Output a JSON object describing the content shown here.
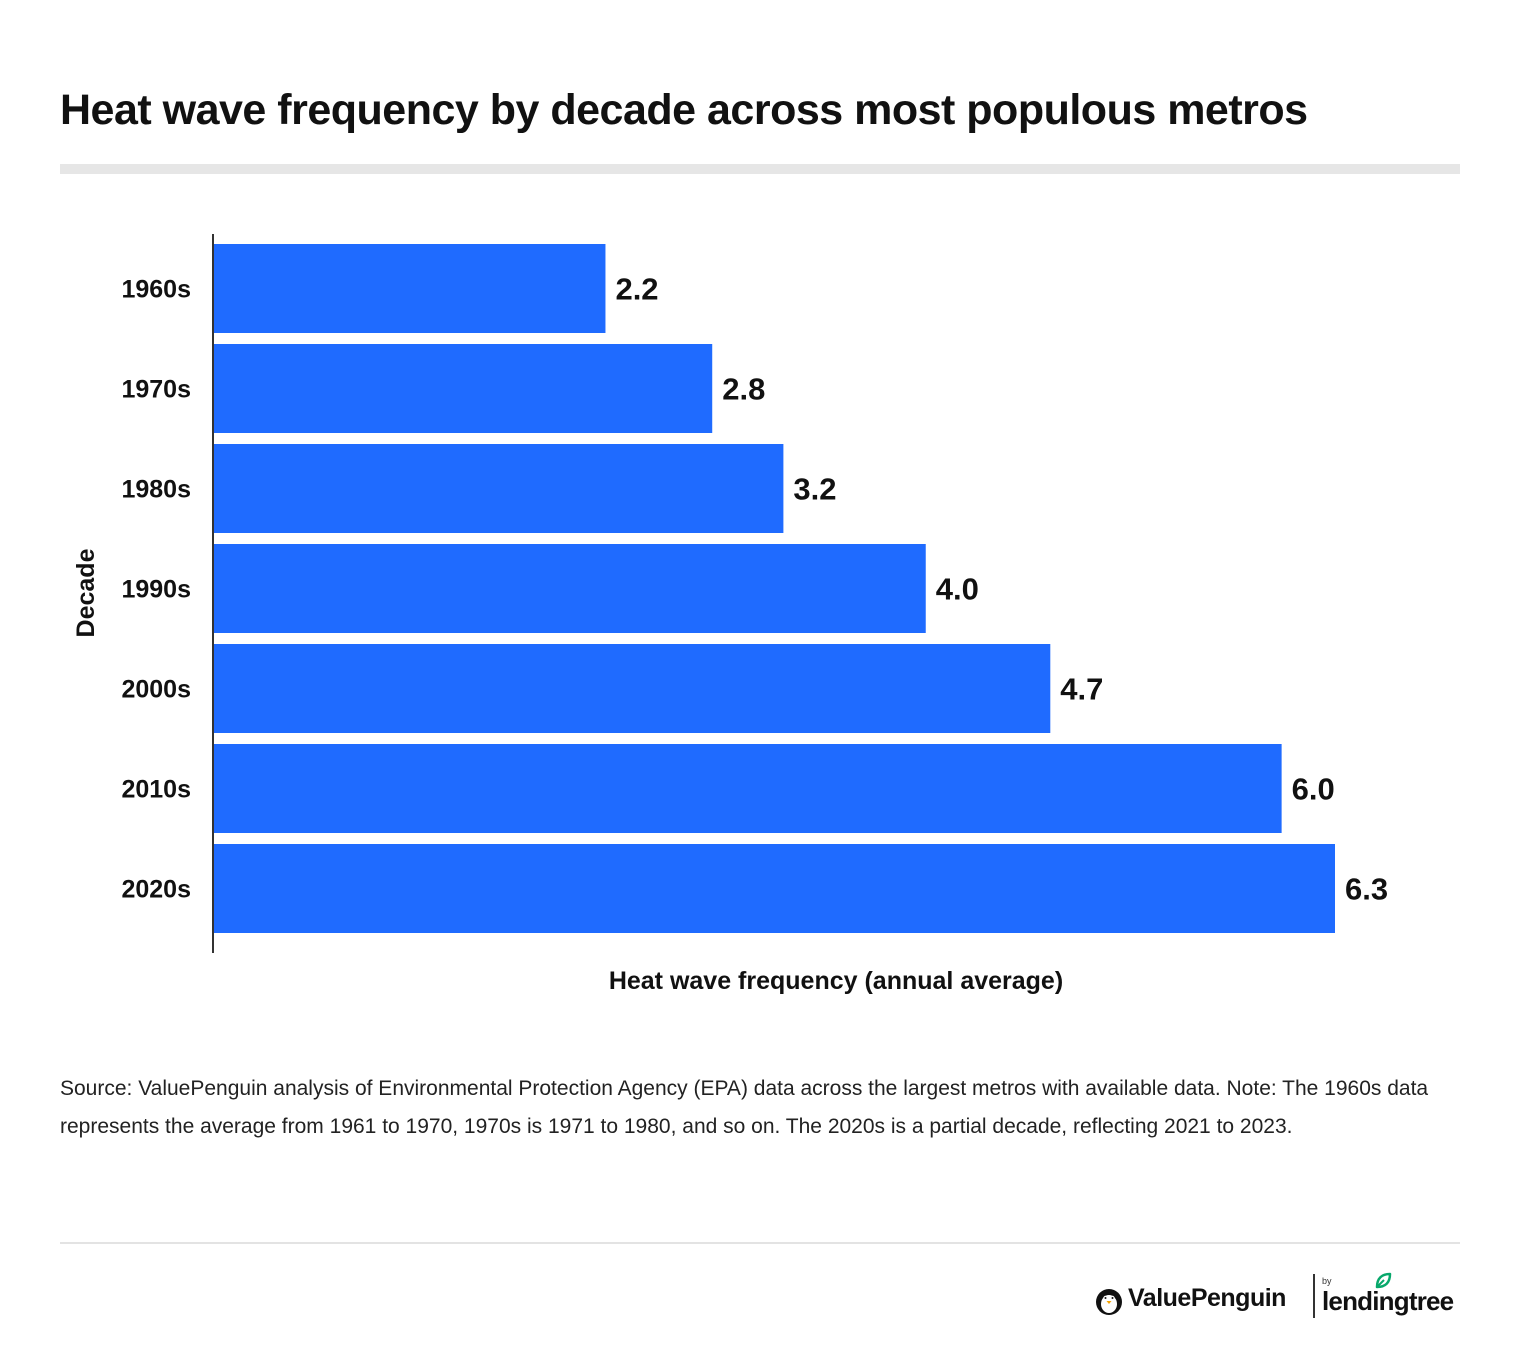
{
  "title": "Heat wave frequency by decade across most populous metros",
  "source_note": "Source: ValuePenguin analysis of Environmental Protection Agency (EPA) data across the largest metros with available data. Note: The 1960s data represents the average from 1961 to 1970, 1970s is 1971 to 1980, and so on. The 2020s is a partial decade, reflecting 2021 to 2023.",
  "brand": {
    "valuepenguin": "ValuePenguin",
    "by": "by",
    "lendingtree": "lendingtree"
  },
  "colors": {
    "bar": "#1f6bff",
    "text": "#111111",
    "axis": "#333333",
    "leaf": "#08a86b"
  },
  "chart_data": {
    "type": "bar",
    "orientation": "horizontal",
    "categories": [
      "1960s",
      "1970s",
      "1980s",
      "1990s",
      "2000s",
      "2010s",
      "2020s"
    ],
    "values": [
      2.2,
      2.8,
      3.2,
      4.0,
      4.7,
      6.0,
      6.3
    ],
    "data_labels": [
      "2.2",
      "2.8",
      "3.2",
      "4.0",
      "4.7",
      "6.0",
      "6.3"
    ],
    "xlabel": "Heat wave frequency (annual average)",
    "ylabel": "Decade",
    "xlim": [
      0,
      6.3
    ],
    "grid": false,
    "legend": "none"
  }
}
